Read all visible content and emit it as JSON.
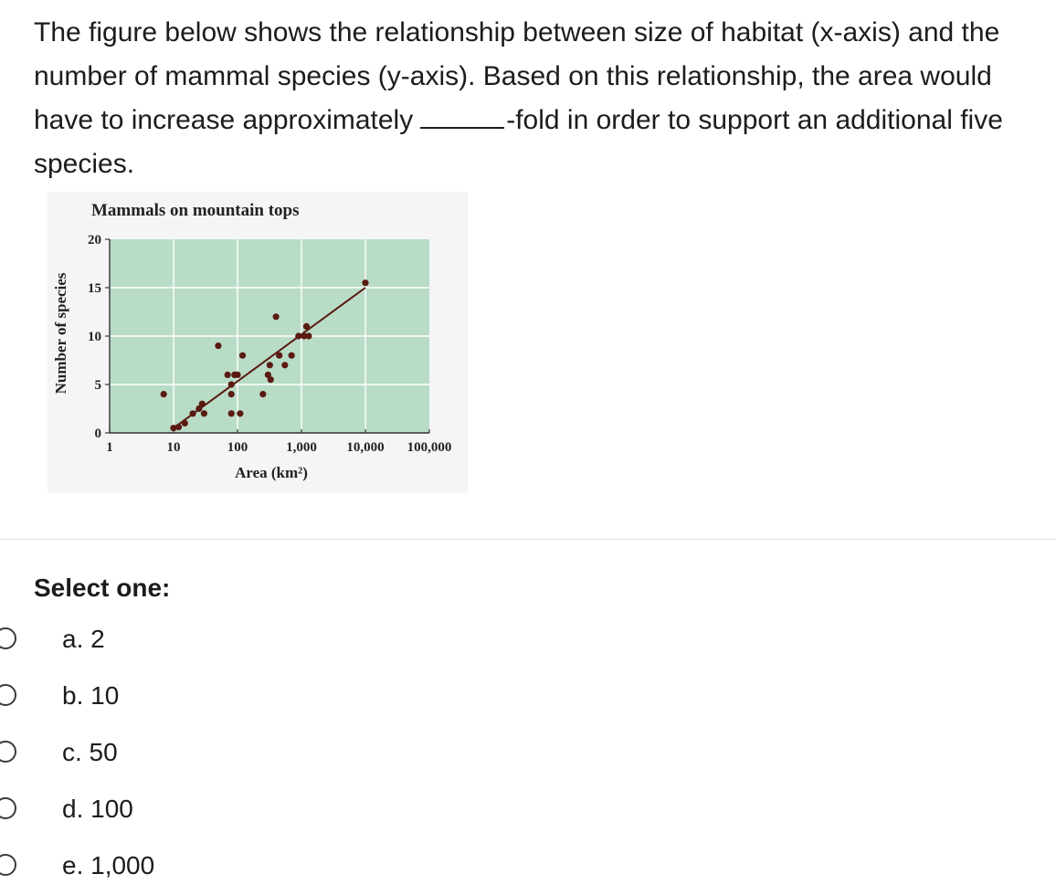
{
  "question": {
    "text_before_blank": "The figure below shows the relationship between size of habitat (x-axis) and the number of mammal species (y-axis). Based on this relationship, the area would have to increase approximately",
    "text_after_blank": "-fold in order to support an additional five species."
  },
  "chart_data": {
    "type": "scatter",
    "title": "Mammals on mountain tops",
    "xlabel": "Area (km²)",
    "ylabel": "Number of species",
    "x_scale": "log",
    "xlim": [
      1,
      100000
    ],
    "ylim": [
      0,
      20
    ],
    "x_ticks": [
      "1",
      "10",
      "100",
      "1,000",
      "10,000",
      "100,000"
    ],
    "y_ticks": [
      "0",
      "5",
      "10",
      "15",
      "20"
    ],
    "grid": true,
    "background_color": "#b9dcc7",
    "point_color": "#5a1a12",
    "points": [
      {
        "x": 7,
        "y": 4
      },
      {
        "x": 10,
        "y": 0.5
      },
      {
        "x": 12,
        "y": 0.6
      },
      {
        "x": 15,
        "y": 1
      },
      {
        "x": 20,
        "y": 2
      },
      {
        "x": 25,
        "y": 2.5
      },
      {
        "x": 28,
        "y": 3
      },
      {
        "x": 30,
        "y": 2
      },
      {
        "x": 50,
        "y": 9
      },
      {
        "x": 70,
        "y": 6
      },
      {
        "x": 80,
        "y": 5
      },
      {
        "x": 90,
        "y": 6
      },
      {
        "x": 100,
        "y": 6
      },
      {
        "x": 80,
        "y": 4
      },
      {
        "x": 80,
        "y": 2
      },
      {
        "x": 110,
        "y": 2
      },
      {
        "x": 120,
        "y": 8
      },
      {
        "x": 250,
        "y": 4
      },
      {
        "x": 300,
        "y": 6
      },
      {
        "x": 320,
        "y": 7
      },
      {
        "x": 330,
        "y": 5.5
      },
      {
        "x": 400,
        "y": 12
      },
      {
        "x": 450,
        "y": 8
      },
      {
        "x": 550,
        "y": 7
      },
      {
        "x": 700,
        "y": 8
      },
      {
        "x": 900,
        "y": 10
      },
      {
        "x": 1100,
        "y": 10
      },
      {
        "x": 1200,
        "y": 11
      },
      {
        "x": 1300,
        "y": 10
      },
      {
        "x": 10000,
        "y": 15.5
      }
    ],
    "trend_line": {
      "x": [
        10,
        10000
      ],
      "y": [
        0.5,
        15
      ]
    }
  },
  "prompt_label": "Select one:",
  "options": [
    {
      "label": "a. 2"
    },
    {
      "label": "b. 10"
    },
    {
      "label": "c. 50"
    },
    {
      "label": "d. 100"
    },
    {
      "label": "e. 1,000"
    }
  ]
}
